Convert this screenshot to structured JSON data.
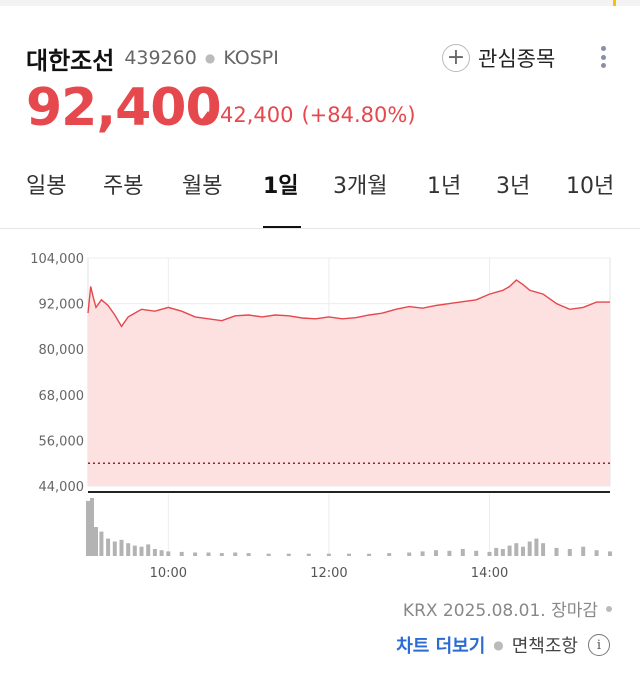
{
  "stock": {
    "name": "대한조선",
    "code": "439260",
    "market": "KOSPI",
    "price": "92,400",
    "change": "42,400",
    "change_pct": "(+84.80%)",
    "favorite_label": "관심종목"
  },
  "tabs": [
    {
      "label": "일봉",
      "active": false
    },
    {
      "label": "주봉",
      "active": false
    },
    {
      "label": "월봉",
      "active": false
    },
    {
      "label": "1일",
      "active": true
    },
    {
      "label": "3개월",
      "active": false
    },
    {
      "label": "1년",
      "active": false
    },
    {
      "label": "3년",
      "active": false
    },
    {
      "label": "10년",
      "active": false
    }
  ],
  "colors": {
    "up": "#e5484d",
    "area_fill": "#fde1e1",
    "volume": "#b3b3b3",
    "link": "#2b6bd4"
  },
  "chart_data": {
    "type": "line",
    "y_ticks": [
      "104,000",
      "92,000",
      "80,000",
      "68,000",
      "56,000",
      "44,000"
    ],
    "ylim": [
      44000,
      104000
    ],
    "x_ticks": [
      "10:00",
      "12:00",
      "14:00"
    ],
    "x_range": [
      "09:00",
      "15:30"
    ],
    "prev_close": 50000,
    "grid": true,
    "price_series": {
      "x": [
        "09:00",
        "09:02",
        "09:04",
        "09:06",
        "09:10",
        "09:15",
        "09:20",
        "09:25",
        "09:30",
        "09:35",
        "09:40",
        "09:50",
        "10:00",
        "10:10",
        "10:20",
        "10:30",
        "10:40",
        "10:50",
        "11:00",
        "11:10",
        "11:20",
        "11:30",
        "11:40",
        "11:50",
        "12:00",
        "12:10",
        "12:20",
        "12:30",
        "12:40",
        "12:50",
        "13:00",
        "13:10",
        "13:20",
        "13:30",
        "13:40",
        "13:50",
        "14:00",
        "14:10",
        "14:15",
        "14:20",
        "14:25",
        "14:30",
        "14:40",
        "14:50",
        "15:00",
        "15:10",
        "15:20",
        "15:30"
      ],
      "y": [
        89500,
        96500,
        93500,
        91000,
        93000,
        91500,
        89000,
        86000,
        88500,
        89500,
        90500,
        90000,
        91000,
        90000,
        88500,
        88000,
        87500,
        88800,
        89000,
        88500,
        89000,
        88800,
        88200,
        88000,
        88500,
        88000,
        88300,
        89000,
        89500,
        90500,
        91200,
        90800,
        91500,
        92000,
        92500,
        93000,
        94500,
        95500,
        96500,
        98200,
        97000,
        95500,
        94500,
        92000,
        90500,
        91000,
        92400,
        92400
      ]
    },
    "volume_series": {
      "x": [
        "09:00",
        "09:03",
        "09:06",
        "09:10",
        "09:15",
        "09:20",
        "09:25",
        "09:30",
        "09:35",
        "09:40",
        "09:45",
        "09:50",
        "09:55",
        "10:00",
        "10:10",
        "10:20",
        "10:30",
        "10:40",
        "10:50",
        "11:00",
        "11:15",
        "11:30",
        "11:45",
        "12:00",
        "12:15",
        "12:30",
        "12:45",
        "13:00",
        "13:10",
        "13:20",
        "13:30",
        "13:40",
        "13:50",
        "14:00",
        "14:05",
        "14:10",
        "14:15",
        "14:20",
        "14:25",
        "14:30",
        "14:35",
        "14:40",
        "14:50",
        "15:00",
        "15:10",
        "15:20",
        "15:30"
      ],
      "y": [
        95,
        100,
        50,
        42,
        30,
        25,
        28,
        22,
        18,
        16,
        20,
        12,
        10,
        8,
        7,
        6,
        6,
        5,
        6,
        5,
        4,
        4,
        4,
        4,
        4,
        4,
        5,
        6,
        8,
        10,
        9,
        12,
        9,
        7,
        14,
        12,
        18,
        22,
        16,
        25,
        30,
        22,
        14,
        12,
        16,
        10,
        8
      ]
    }
  },
  "footer": {
    "source": "KRX 2025.08.01. 장마감",
    "more_chart": "차트 더보기",
    "disclaimer": "면책조항",
    "info_icon_glyph": "i"
  }
}
